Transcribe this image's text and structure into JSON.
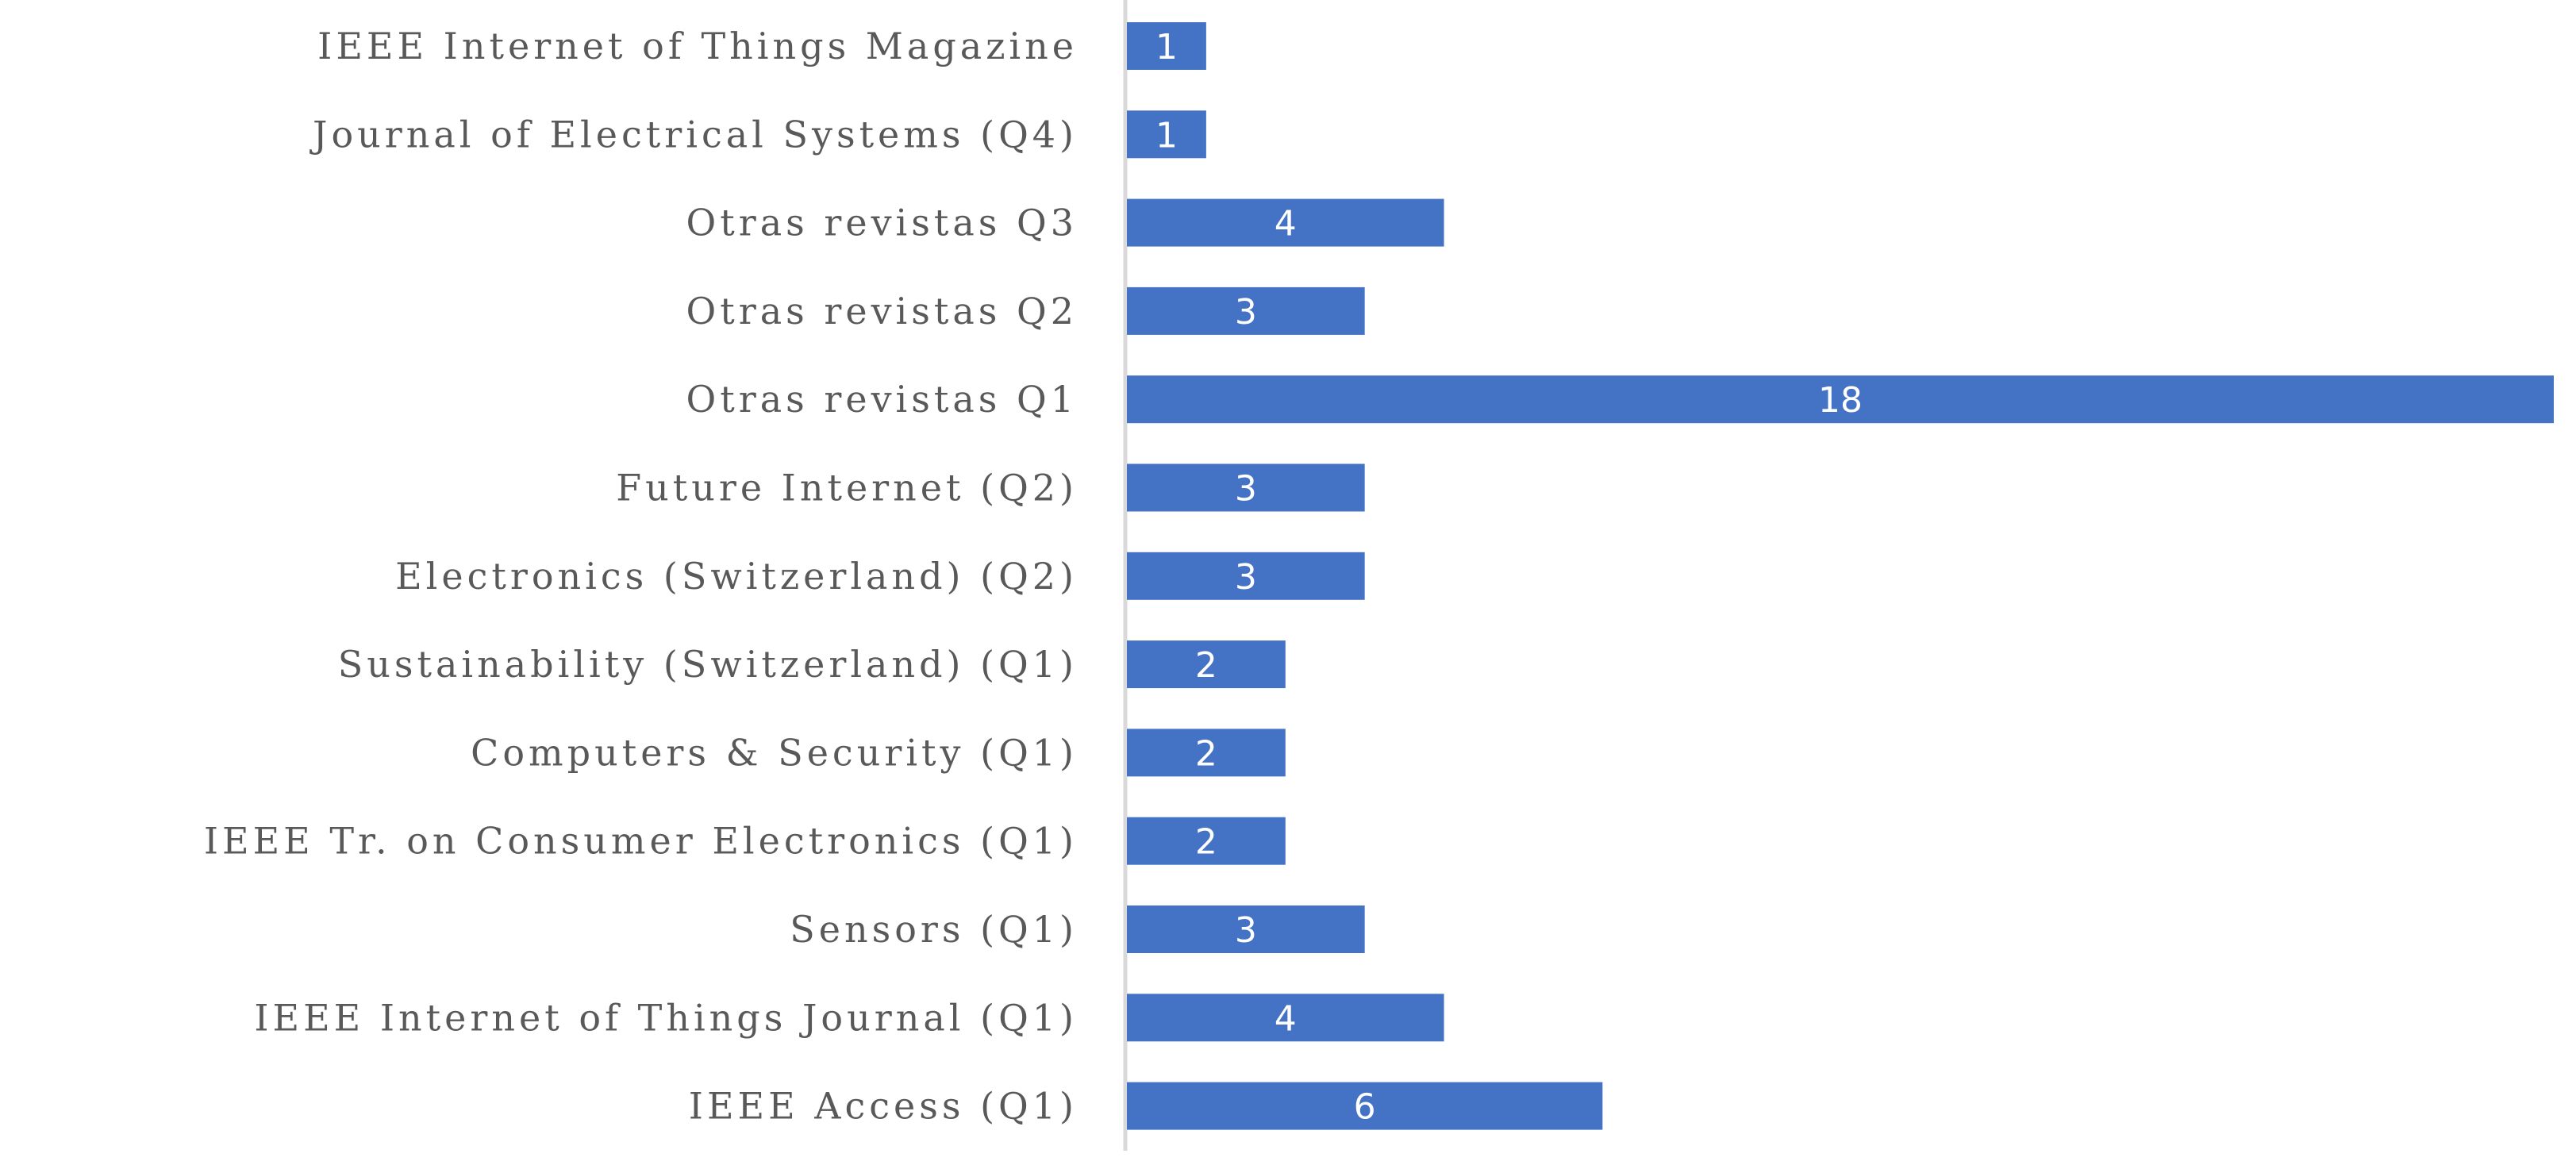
{
  "chart_data": {
    "type": "bar",
    "orientation": "horizontal",
    "categories": [
      "IEEE Internet of Things Magazine",
      "Journal of Electrical Systems (Q4)",
      "Otras revistas Q3",
      "Otras revistas Q2",
      "Otras revistas Q1",
      "Future Internet (Q2)",
      "Electronics (Switzerland) (Q2)",
      "Sustainability (Switzerland) (Q1)",
      "Computers & Security (Q1)",
      "IEEE Tr. on Consumer Electronics (Q1)",
      "Sensors (Q1)",
      "IEEE Internet of Things Journal (Q1)",
      "IEEE Access (Q1)"
    ],
    "values": [
      1,
      1,
      4,
      3,
      18,
      3,
      3,
      2,
      2,
      2,
      3,
      4,
      6
    ],
    "value_labels": [
      "1",
      "1",
      "4",
      "3",
      "18",
      "3",
      "3",
      "2",
      "2",
      "2",
      "3",
      "4",
      "6"
    ],
    "title": "",
    "xlabel": "",
    "ylabel": "",
    "xlim": [
      0,
      18
    ],
    "grid": false,
    "legend": "none",
    "data_labels": "inside-center",
    "colors": {
      "bar": "#4472c4",
      "axis": "#d9d9d9",
      "label_text": "#595959",
      "value_text": "#ffffff"
    }
  }
}
